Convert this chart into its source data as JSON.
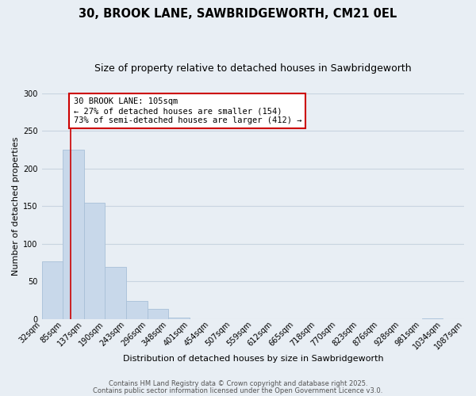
{
  "title": "30, BROOK LANE, SAWBRIDGEWORTH, CM21 0EL",
  "subtitle": "Size of property relative to detached houses in Sawbridgeworth",
  "bin_edges": [
    32,
    85,
    137,
    190,
    243,
    296,
    348,
    401,
    454,
    507,
    559,
    612,
    665,
    718,
    770,
    823,
    876,
    928,
    981,
    1034,
    1087
  ],
  "bar_heights": [
    77,
    225,
    155,
    69,
    24,
    13,
    2,
    0,
    0,
    0,
    0,
    0,
    0,
    0,
    0,
    0,
    0,
    0,
    1,
    0
  ],
  "bin_labels": [
    "32sqm",
    "85sqm",
    "137sqm",
    "190sqm",
    "243sqm",
    "296sqm",
    "348sqm",
    "401sqm",
    "454sqm",
    "507sqm",
    "559sqm",
    "612sqm",
    "665sqm",
    "718sqm",
    "770sqm",
    "823sqm",
    "876sqm",
    "928sqm",
    "981sqm",
    "1034sqm",
    "1087sqm"
  ],
  "bar_color": "#c8d8ea",
  "bar_edge_color": "#a8c0d8",
  "vline_x": 105,
  "vline_color": "#cc0000",
  "xlabel": "Distribution of detached houses by size in Sawbridgeworth",
  "ylabel": "Number of detached properties",
  "ylim": [
    0,
    300
  ],
  "yticks": [
    0,
    50,
    100,
    150,
    200,
    250,
    300
  ],
  "annotation_title": "30 BROOK LANE: 105sqm",
  "annotation_line1": "← 27% of detached houses are smaller (154)",
  "annotation_line2": "73% of semi-detached houses are larger (412) →",
  "annotation_box_color": "#ffffff",
  "annotation_box_edge": "#cc0000",
  "footer1": "Contains HM Land Registry data © Crown copyright and database right 2025.",
  "footer2": "Contains public sector information licensed under the Open Government Licence v3.0.",
  "background_color": "#e8eef4",
  "grid_color": "#c8d4e0",
  "title_fontsize": 10.5,
  "subtitle_fontsize": 9,
  "axis_label_fontsize": 8,
  "tick_fontsize": 7,
  "annotation_fontsize": 7.5,
  "footer_fontsize": 6
}
